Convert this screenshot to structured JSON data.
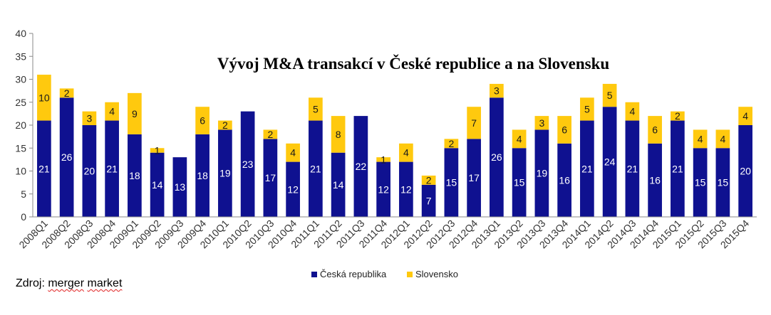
{
  "chart_data": {
    "type": "bar",
    "stacked": true,
    "title": "Vývoj M&A transakcí v České republice a na Slovensku",
    "ylim": [
      0,
      40
    ],
    "yticks": [
      0,
      5,
      10,
      15,
      20,
      25,
      30,
      35,
      40
    ],
    "grid": false,
    "legend_position": "bottom",
    "categories": [
      "2008Q1",
      "2008Q2",
      "2008Q3",
      "2008Q4",
      "2009Q1",
      "2009Q2",
      "2009Q3",
      "2009Q4",
      "2010Q1",
      "2010Q2",
      "2010Q3",
      "2010Q4",
      "2011Q1",
      "2011Q2",
      "2011Q3",
      "2011Q4",
      "2012Q1",
      "2012Q2",
      "2012Q3",
      "2012Q4",
      "2013Q1",
      "2013Q2",
      "2013Q3",
      "2013Q4",
      "2014Q1",
      "2014Q2",
      "2014Q3",
      "2014Q4",
      "2015Q1",
      "2015Q2",
      "2015Q3",
      "2015Q4"
    ],
    "series": [
      {
        "name": "Česká republika",
        "color": "#0f1190",
        "values": [
          21,
          26,
          20,
          21,
          18,
          14,
          13,
          18,
          19,
          23,
          17,
          12,
          21,
          14,
          22,
          12,
          12,
          7,
          15,
          17,
          26,
          15,
          19,
          16,
          21,
          24,
          21,
          16,
          21,
          15,
          15,
          20
        ]
      },
      {
        "name": "Slovensko",
        "color": "#ffc90e",
        "values": [
          10,
          2,
          3,
          4,
          9,
          1,
          0,
          6,
          2,
          0,
          2,
          4,
          5,
          8,
          0,
          1,
          4,
          2,
          2,
          7,
          3,
          4,
          3,
          6,
          5,
          5,
          4,
          6,
          2,
          4,
          4,
          4
        ]
      }
    ]
  },
  "source": {
    "prefix": "Zdroj: ",
    "word1": "merger",
    "space": " ",
    "word2": "market"
  }
}
